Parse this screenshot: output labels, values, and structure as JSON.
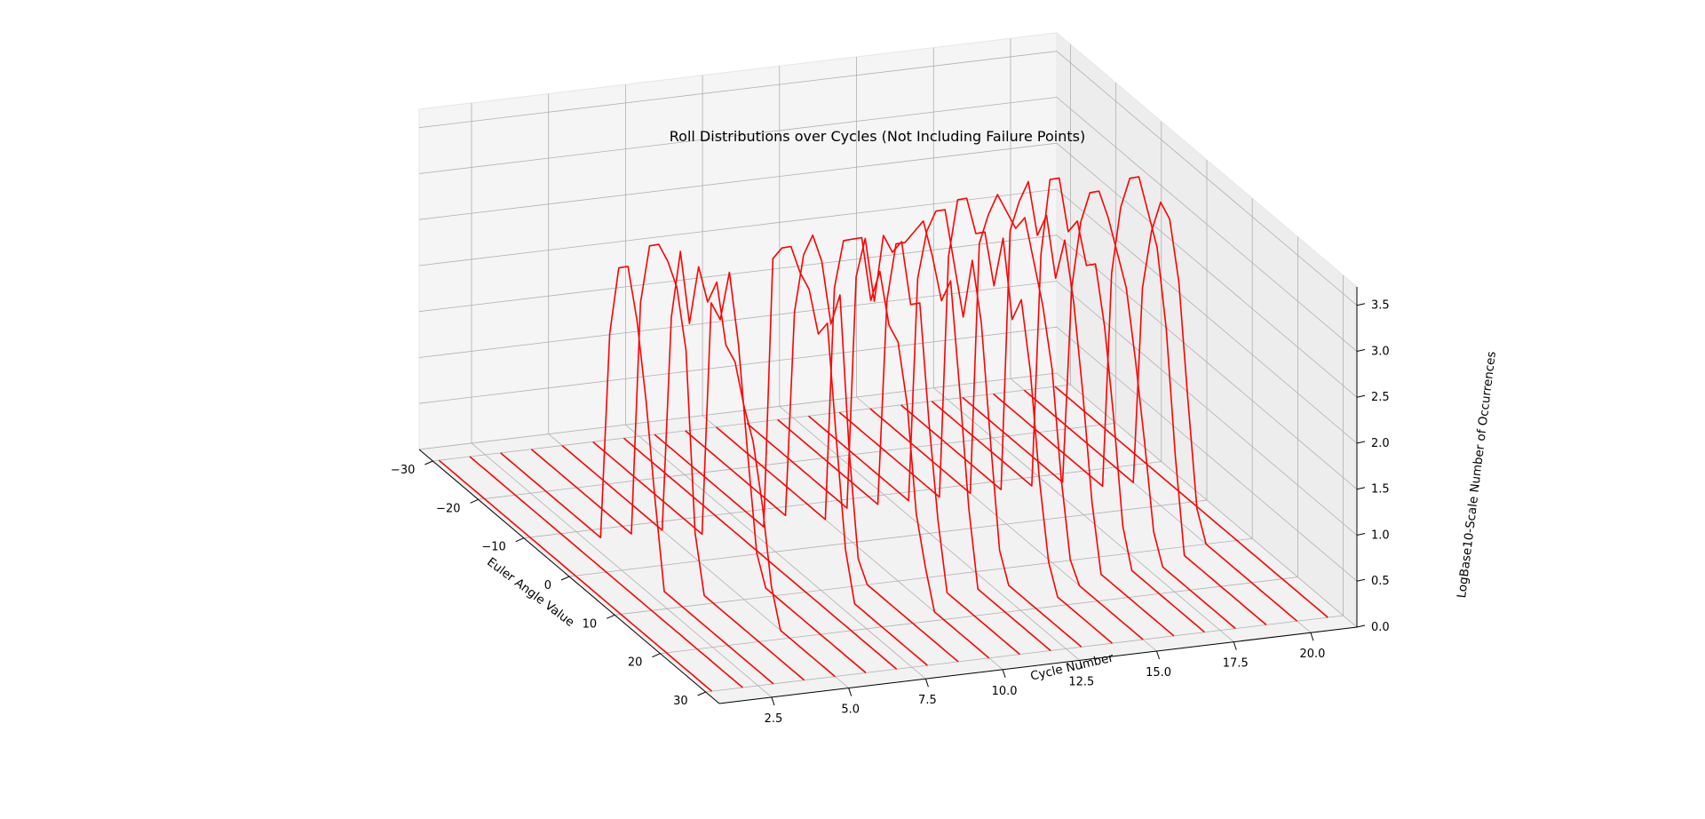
{
  "chart_data": {
    "type": "line",
    "projection": "3d",
    "title": "Roll Distributions over Cycles (Not Including Failure Points)",
    "xlabel": "Euler Angle Value",
    "ylabel": "Cycle Number",
    "zlabel": "LogBase10-Scale Number of Occurrences",
    "xlim": [
      -33,
      33
    ],
    "ylim": [
      0.8,
      21.5
    ],
    "zlim": [
      0,
      3.7
    ],
    "x_ticks": [
      -30,
      -20,
      -10,
      0,
      10,
      20,
      30
    ],
    "y_ticks": [
      2.5,
      5.0,
      7.5,
      10.0,
      12.5,
      15.0,
      17.5,
      20.0
    ],
    "z_ticks": [
      0.0,
      0.5,
      1.0,
      1.5,
      2.0,
      2.5,
      3.0,
      3.5
    ],
    "x_tick_labels": [
      "−30",
      "−20",
      "−10",
      "0",
      "10",
      "20",
      "30"
    ],
    "y_tick_labels": [
      "2.5",
      "5.0",
      "7.5",
      "10.0",
      "12.5",
      "15.0",
      "17.5",
      "20.0"
    ],
    "z_tick_labels": [
      "0.0",
      "0.5",
      "1.0",
      "1.5",
      "2.0",
      "2.5",
      "3.0",
      "3.5"
    ],
    "grid": true,
    "line_color": "#ff0000",
    "pane_color": "#f2f2f2",
    "grid_color": "#b0b0b0",
    "x_values": [
      -30,
      -28,
      -26,
      -24,
      -22,
      -20,
      -18,
      -16,
      -14,
      -12,
      -10,
      -8,
      -6,
      -4,
      -2,
      0,
      2,
      4,
      6,
      8,
      10,
      12,
      14,
      16,
      18,
      20,
      22,
      24,
      26,
      28,
      30
    ],
    "series": [
      {
        "cycle": 1,
        "values": [
          0,
          0,
          0,
          0,
          0,
          0,
          0,
          0,
          0,
          0,
          0,
          0,
          0,
          0,
          0,
          0,
          0,
          0,
          0,
          0,
          0,
          0,
          0,
          0,
          0,
          0,
          0,
          0,
          0,
          0,
          0
        ]
      },
      {
        "cycle": 2,
        "values": [
          0,
          0,
          0,
          0,
          0,
          0,
          0,
          0,
          0,
          0,
          0,
          0,
          0,
          0,
          0,
          0,
          0,
          0,
          0,
          0,
          0,
          0,
          0,
          0,
          0,
          0,
          0,
          0,
          0,
          0,
          0
        ]
      },
      {
        "cycle": 3,
        "values": [
          0,
          0,
          0,
          0,
          0,
          0,
          0,
          0,
          0,
          0,
          0,
          0,
          2.3,
          3.1,
          3.2,
          2.7,
          1.9,
          0.9,
          0,
          0,
          0,
          0,
          0,
          0,
          0,
          0,
          0,
          0,
          0,
          0,
          0
        ]
      },
      {
        "cycle": 4,
        "values": [
          0,
          0,
          0,
          0,
          0,
          0,
          0,
          0,
          0,
          0,
          0,
          0,
          2.6,
          3.3,
          3.4,
          3.3,
          3.1,
          2.5,
          0.6,
          0,
          0,
          0,
          0,
          0,
          0,
          0,
          0,
          0,
          0,
          0,
          0
        ]
      },
      {
        "cycle": 5,
        "values": [
          0,
          0,
          0,
          0,
          0,
          0,
          0,
          0,
          0,
          0,
          0,
          0,
          2.4,
          3.2,
          2.5,
          3.2,
          2.9,
          3.2,
          2.6,
          2.5,
          2.1,
          1.8,
          1.2,
          0.4,
          0,
          0,
          0,
          0,
          0,
          0,
          0
        ]
      },
      {
        "cycle": 6,
        "values": [
          0,
          0,
          0,
          0,
          0,
          0,
          0,
          0,
          0,
          0,
          0,
          0,
          0,
          2.6,
          2.5,
          3.1,
          2.4,
          1.3,
          0.3,
          0,
          0,
          0,
          0,
          0,
          0,
          0,
          0,
          0,
          0,
          0,
          0
        ]
      },
      {
        "cycle": 7,
        "values": [
          0,
          0,
          0,
          0,
          0,
          0,
          0,
          0,
          0,
          0,
          0,
          0,
          0,
          0,
          0,
          0,
          0,
          0,
          0,
          0,
          0,
          0,
          0,
          0,
          0,
          0,
          0,
          0,
          0,
          0,
          0
        ]
      },
      {
        "cycle": 8,
        "values": [
          0,
          0,
          0,
          0,
          0,
          0,
          0,
          0,
          0,
          0,
          0,
          0,
          0,
          3.0,
          3.2,
          3.3,
          3.1,
          3.0,
          2.6,
          2.8,
          1.6,
          0.5,
          0,
          0,
          0,
          0,
          0,
          0,
          0,
          0,
          0
        ]
      },
      {
        "cycle": 9,
        "values": [
          0,
          0,
          0,
          0,
          0,
          0,
          0,
          0,
          0,
          0,
          0,
          0,
          2.3,
          3.0,
          3.3,
          3.1,
          2.5,
          2.9,
          1.3,
          0.2,
          0,
          0,
          0,
          0,
          0,
          0,
          0,
          0,
          0,
          0,
          0
        ]
      },
      {
        "cycle": 10,
        "values": [
          0,
          0,
          0,
          0,
          0,
          0,
          0,
          0,
          0,
          0,
          0,
          0,
          0,
          2.6,
          3.2,
          3.3,
          3.4,
          2.8,
          3.2,
          2.7,
          2.6,
          2.0,
          0.9,
          0.4,
          0,
          0,
          0,
          0,
          0,
          0,
          0
        ]
      },
      {
        "cycle": 11,
        "values": [
          0,
          0,
          0,
          0,
          0,
          0,
          0,
          0,
          0,
          0,
          0,
          0,
          2.6,
          3.1,
          2.5,
          3.3,
          3.2,
          3.4,
          2.8,
          2.9,
          1.7,
          0.7,
          0,
          0,
          0,
          0,
          0,
          0,
          0,
          0,
          0
        ]
      },
      {
        "cycle": 12,
        "values": [
          0,
          0,
          0,
          0,
          0,
          0,
          0,
          0,
          0,
          0,
          0,
          0,
          2.3,
          3.0,
          3.1,
          3.3,
          3.5,
          3.2,
          2.8,
          3.1,
          2.0,
          0.8,
          0,
          0,
          0,
          0,
          0,
          0,
          0,
          0,
          0
        ]
      },
      {
        "cycle": 13,
        "values": [
          0,
          0,
          0,
          0,
          0,
          0,
          0,
          0,
          0,
          0,
          0,
          0,
          2.5,
          3.1,
          3.4,
          3.5,
          3.0,
          2.5,
          3.2,
          2.6,
          1.4,
          0.3,
          0,
          0,
          0,
          0,
          0,
          0,
          0,
          0,
          0
        ]
      },
      {
        "cycle": 14,
        "values": [
          0,
          0,
          0,
          0,
          0,
          0,
          0,
          0,
          0,
          0,
          0,
          0,
          2.7,
          3.4,
          3.5,
          3.2,
          3.3,
          2.8,
          3.4,
          2.6,
          2.9,
          2.2,
          1.1,
          0.3,
          0,
          0,
          0,
          0,
          0,
          0,
          0
        ]
      },
      {
        "cycle": 15,
        "values": [
          0,
          0,
          0,
          0,
          0,
          0,
          0,
          0,
          0,
          0,
          0,
          0,
          2.8,
          3.2,
          3.5,
          3.4,
          3.3,
          3.5,
          3.1,
          2.7,
          2.1,
          1.0,
          0.2,
          0,
          0,
          0,
          0,
          0,
          0,
          0,
          0
        ]
      },
      {
        "cycle": 16,
        "values": [
          0,
          0,
          0,
          0,
          0,
          0,
          0,
          0,
          0,
          0,
          0,
          0,
          2.9,
          3.3,
          3.6,
          3.1,
          3.4,
          2.8,
          3.3,
          2.7,
          1.8,
          0.7,
          0,
          0,
          0,
          0,
          0,
          0,
          0,
          0,
          0
        ]
      },
      {
        "cycle": 17,
        "values": [
          0,
          0,
          0,
          0,
          0,
          0,
          0,
          0,
          0,
          0,
          0,
          0,
          2.6,
          3.5,
          3.6,
          3.1,
          3.3,
          2.9,
          3.0,
          2.4,
          1.5,
          0.4,
          0,
          0,
          0,
          0,
          0,
          0,
          0,
          0,
          0
        ]
      },
      {
        "cycle": 18,
        "values": [
          0,
          0,
          0,
          0,
          0,
          0,
          0,
          0,
          0,
          0,
          0,
          0,
          2.2,
          3.0,
          3.4,
          3.5,
          3.3,
          3.0,
          2.7,
          2.0,
          1.2,
          0.3,
          0,
          0,
          0,
          0,
          0,
          0,
          0,
          0,
          0
        ]
      },
      {
        "cycle": 19,
        "values": [
          0,
          0,
          0,
          0,
          0,
          0,
          0,
          0,
          0,
          0,
          0,
          0,
          0,
          2.4,
          3.2,
          3.6,
          3.7,
          3.4,
          3.1,
          2.3,
          1.0,
          0,
          0,
          0,
          0,
          0,
          0,
          0,
          0,
          0,
          0
        ]
      },
      {
        "cycle": 20,
        "values": [
          0,
          0,
          0,
          0,
          0,
          0,
          0,
          0,
          0,
          0,
          0,
          0,
          0,
          2.2,
          2.9,
          3.3,
          3.2,
          2.6,
          1.4,
          0.3,
          0,
          0,
          0,
          0,
          0,
          0,
          0,
          0,
          0,
          0,
          0
        ]
      },
      {
        "cycle": 21,
        "values": [
          0,
          0,
          0,
          0,
          0,
          0,
          0,
          0,
          0,
          0,
          0,
          0,
          0,
          0,
          0,
          0,
          0,
          0,
          0,
          0,
          0,
          0,
          0,
          0,
          0,
          0,
          0,
          0,
          0,
          0,
          0
        ]
      }
    ]
  }
}
